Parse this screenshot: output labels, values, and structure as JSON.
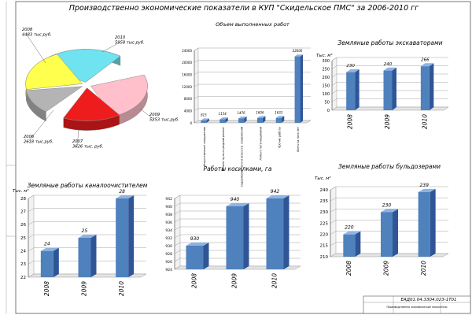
{
  "title": "Производственно экономические показатели в КУП \"Скидельское ПМС\" за 2006-2010 гг",
  "colors": {
    "bar_front": "#4f81bd",
    "bar_side": "#2f5597",
    "bar_top": "#8eb4e3",
    "grid": "#9a9a9a",
    "frame": "#555555"
  },
  "stamp": {
    "code": "ЕАД01.04.3304.023-1Т01",
    "title": "Производственно экономические показатели"
  },
  "chart_data": [
    {
      "id": "pie",
      "type": "pie",
      "title": "",
      "labels": [
        {
          "year": "2006",
          "value": "2618 тыс.руб."
        },
        {
          "year": "2007",
          "value": "3626 тыс. руб."
        },
        {
          "year": "2008",
          "value": "4483 тыс.руб."
        },
        {
          "year": "2009",
          "value": "5253 тыс.руб."
        },
        {
          "year": "2010",
          "value": "5958 тыс.руб."
        }
      ],
      "values": [
        2618,
        3626,
        4483,
        5253,
        5958
      ],
      "colors": [
        "#b4b4b4",
        "#ee1c1c",
        "#ffff4d",
        "#ffc0cb",
        "#6fe3f0"
      ]
    },
    {
      "id": "volume",
      "type": "bar",
      "title": "Объем выполненных работ",
      "categories": [
        "Искусственные сооружения",
        "Ремонт пути и средний ремонт",
        "Содержание пути и искусств. сооружений",
        "Ремонт пути машинами",
        "Прочие работы",
        "Всего за пять лет"
      ],
      "values": [
        815,
        1154,
        1476,
        1606,
        1633,
        22006
      ],
      "value_labels": [
        "815",
        "1154",
        "1476",
        "1606",
        "1633",
        "22006"
      ],
      "ylim": [
        0,
        24000
      ],
      "yticks": [
        "0",
        "4000",
        "8000",
        "12000",
        "16000",
        "20000",
        "24000"
      ]
    },
    {
      "id": "excavators",
      "type": "bar",
      "title": "Земляные работы экскаваторами",
      "ylabel": "Тыс. м³",
      "categories": [
        "2008",
        "2009",
        "2010"
      ],
      "values": [
        230,
        240,
        266
      ],
      "value_labels": [
        "230",
        "240",
        "266"
      ],
      "ylim": [
        0,
        300
      ],
      "yticks": [
        "0",
        "50",
        "100",
        "150",
        "200",
        "250",
        "300"
      ]
    },
    {
      "id": "ditch",
      "type": "bar",
      "title": "Земляные работы каналоочистителем",
      "ylabel": "Тыс. м³",
      "categories": [
        "2008",
        "2009",
        "2010"
      ],
      "values": [
        24,
        25,
        28
      ],
      "value_labels": [
        "24",
        "25",
        "28"
      ],
      "ylim": [
        22,
        28
      ],
      "yticks": [
        "22",
        "23",
        "24",
        "25",
        "26",
        "27",
        "28"
      ]
    },
    {
      "id": "mowing",
      "type": "bar",
      "title": "Работы косилками, га",
      "categories": [
        "2008",
        "2009",
        "2010"
      ],
      "values": [
        930,
        940,
        942
      ],
      "value_labels": [
        "930",
        "940",
        "942"
      ],
      "ylim": [
        924,
        942
      ],
      "yticks": [
        "924",
        "926",
        "928",
        "930",
        "932",
        "934",
        "936",
        "938",
        "940",
        "942"
      ]
    },
    {
      "id": "bulldozers",
      "type": "bar",
      "title": "Земляные работы бульдозерами",
      "ylabel": "Тыс. м³",
      "categories": [
        "2008",
        "2009",
        "2010"
      ],
      "values": [
        220,
        230,
        239
      ],
      "value_labels": [
        "220",
        "230",
        "239"
      ],
      "ylim": [
        210,
        240
      ],
      "yticks": [
        "210",
        "215",
        "220",
        "225",
        "230",
        "235",
        "240"
      ]
    }
  ]
}
